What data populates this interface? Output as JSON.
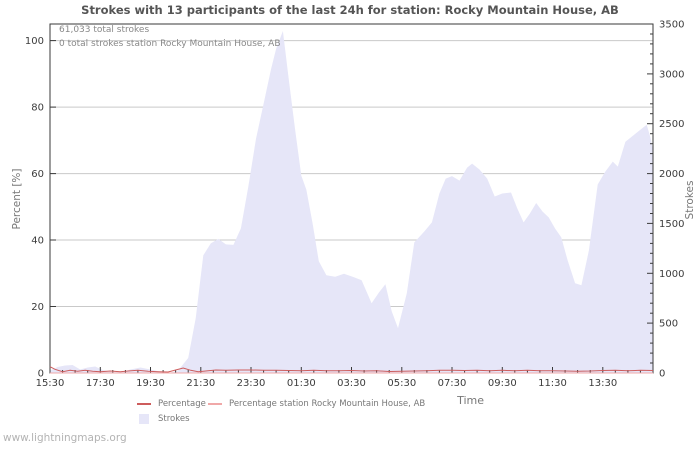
{
  "page": {
    "watermark": "www.lightningmaps.org"
  },
  "chart_data": {
    "type": "area",
    "title": "Strokes with 13 participants of the last 24h for station: Rocky Mountain House, AB",
    "annotations": [
      "61,033 total strokes",
      "0 total strokes station Rocky Mountain House, AB"
    ],
    "total_strokes": "61,033",
    "station_total_strokes": "0",
    "participants": 13,
    "station_name": "Rocky Mountain House, AB",
    "xlabel": "Time",
    "ylabel_left": "Percent [%]",
    "ylabel_right": "Strokes",
    "x_range_hours": [
      0,
      24
    ],
    "x_tick_hours": [
      0,
      2,
      4,
      6,
      8,
      10,
      12,
      14,
      16,
      18,
      20,
      22
    ],
    "x_tick_labels": [
      "15:30",
      "17:30",
      "19:30",
      "21:30",
      "23:30",
      "01:30",
      "03:30",
      "05:30",
      "07:30",
      "09:30",
      "11:30",
      "13:30"
    ],
    "x_minor_step_hours": 0.5,
    "y_left": {
      "min": 0,
      "max": 105,
      "ticks": [
        0,
        20,
        40,
        60,
        80,
        100
      ]
    },
    "y_right": {
      "min": 0,
      "max": 3500,
      "ticks": [
        0,
        500,
        1000,
        1500,
        2000,
        2500,
        3000,
        3500
      ],
      "minor_step": 100
    },
    "grid_percent": [
      20,
      40,
      60,
      80,
      100
    ],
    "grid_on": true,
    "legend_position": "bottom-center",
    "series": [
      {
        "name": "Percentage",
        "type": "line",
        "axis": "left",
        "color": "#cd5c5c",
        "points": [
          [
            0,
            1.9
          ],
          [
            0.2,
            1.1
          ],
          [
            0.5,
            0.4
          ],
          [
            0.8,
            0.8
          ],
          [
            1.1,
            0.5
          ],
          [
            1.4,
            0.8
          ],
          [
            1.7,
            0.5
          ],
          [
            2.0,
            0.4
          ],
          [
            2.4,
            0.6
          ],
          [
            2.8,
            0.4
          ],
          [
            3.1,
            0.6
          ],
          [
            3.5,
            0.8
          ],
          [
            3.9,
            0.5
          ],
          [
            4.3,
            0.4
          ],
          [
            4.7,
            0.3
          ],
          [
            5.0,
            0.9
          ],
          [
            5.3,
            1.5
          ],
          [
            5.6,
            0.8
          ],
          [
            5.9,
            0.4
          ],
          [
            6.2,
            0.6
          ],
          [
            6.6,
            0.9
          ],
          [
            7.0,
            0.85
          ],
          [
            7.5,
            0.9
          ],
          [
            8.0,
            0.9
          ],
          [
            8.5,
            0.85
          ],
          [
            9.0,
            0.8
          ],
          [
            9.5,
            0.75
          ],
          [
            10.0,
            0.7
          ],
          [
            10.5,
            0.8
          ],
          [
            11.0,
            0.65
          ],
          [
            11.5,
            0.7
          ],
          [
            12.0,
            0.75
          ],
          [
            12.5,
            0.6
          ],
          [
            13.0,
            0.65
          ],
          [
            13.5,
            0.45
          ],
          [
            14.0,
            0.55
          ],
          [
            14.5,
            0.6
          ],
          [
            15.0,
            0.7
          ],
          [
            15.5,
            0.8
          ],
          [
            16.0,
            0.85
          ],
          [
            16.5,
            0.75
          ],
          [
            17.0,
            0.8
          ],
          [
            17.5,
            0.7
          ],
          [
            18.0,
            0.8
          ],
          [
            18.5,
            0.65
          ],
          [
            19.0,
            0.8
          ],
          [
            19.5,
            0.7
          ],
          [
            20.0,
            0.65
          ],
          [
            20.5,
            0.6
          ],
          [
            21.0,
            0.55
          ],
          [
            21.5,
            0.6
          ],
          [
            22.0,
            0.75
          ],
          [
            22.5,
            0.8
          ],
          [
            23.0,
            0.7
          ],
          [
            23.5,
            0.8
          ],
          [
            24,
            0.75
          ]
        ]
      },
      {
        "name": "Percentage station Rocky Mountain House, AB",
        "type": "line",
        "axis": "left",
        "color": "#f0a8a8",
        "points": [
          [
            0,
            0
          ],
          [
            24,
            0
          ]
        ]
      },
      {
        "name": "Strokes",
        "type": "area",
        "axis": "right",
        "color": "#e6e6f8",
        "points": [
          [
            0,
            25
          ],
          [
            0.3,
            60
          ],
          [
            0.6,
            75
          ],
          [
            0.9,
            80
          ],
          [
            1.2,
            35
          ],
          [
            1.5,
            55
          ],
          [
            1.8,
            65
          ],
          [
            2.1,
            30
          ],
          [
            2.5,
            8
          ],
          [
            2.9,
            12
          ],
          [
            3.2,
            35
          ],
          [
            3.6,
            55
          ],
          [
            4,
            35
          ],
          [
            4.4,
            12
          ],
          [
            4.8,
            5
          ],
          [
            5.1,
            25
          ],
          [
            5.5,
            150
          ],
          [
            5.8,
            550
          ],
          [
            6.1,
            1180
          ],
          [
            6.4,
            1300
          ],
          [
            6.7,
            1345
          ],
          [
            7,
            1290
          ],
          [
            7.3,
            1285
          ],
          [
            7.6,
            1450
          ],
          [
            7.9,
            1880
          ],
          [
            8.2,
            2350
          ],
          [
            8.5,
            2700
          ],
          [
            8.8,
            3050
          ],
          [
            9,
            3250
          ],
          [
            9.27,
            3430
          ],
          [
            9.5,
            2950
          ],
          [
            9.75,
            2450
          ],
          [
            10,
            1980
          ],
          [
            10.2,
            1840
          ],
          [
            10.45,
            1500
          ],
          [
            10.7,
            1120
          ],
          [
            11,
            980
          ],
          [
            11.35,
            965
          ],
          [
            11.7,
            995
          ],
          [
            12.1,
            960
          ],
          [
            12.4,
            930
          ],
          [
            12.8,
            700
          ],
          [
            13.1,
            810
          ],
          [
            13.35,
            890
          ],
          [
            13.6,
            620
          ],
          [
            13.85,
            450
          ],
          [
            14.2,
            800
          ],
          [
            14.5,
            1310
          ],
          [
            14.9,
            1420
          ],
          [
            15.2,
            1510
          ],
          [
            15.5,
            1800
          ],
          [
            15.75,
            1950
          ],
          [
            16,
            1975
          ],
          [
            16.3,
            1930
          ],
          [
            16.6,
            2060
          ],
          [
            16.8,
            2100
          ],
          [
            17.1,
            2040
          ],
          [
            17.4,
            1950
          ],
          [
            17.7,
            1770
          ],
          [
            18,
            1800
          ],
          [
            18.35,
            1810
          ],
          [
            18.6,
            1650
          ],
          [
            18.85,
            1510
          ],
          [
            19.1,
            1600
          ],
          [
            19.35,
            1705
          ],
          [
            19.6,
            1620
          ],
          [
            19.85,
            1560
          ],
          [
            20.1,
            1450
          ],
          [
            20.35,
            1360
          ],
          [
            20.6,
            1130
          ],
          [
            20.9,
            900
          ],
          [
            21.15,
            880
          ],
          [
            21.45,
            1230
          ],
          [
            21.8,
            1890
          ],
          [
            22.1,
            2020
          ],
          [
            22.4,
            2120
          ],
          [
            22.6,
            2070
          ],
          [
            22.9,
            2320
          ],
          [
            23.2,
            2380
          ],
          [
            23.5,
            2440
          ],
          [
            23.75,
            2490
          ],
          [
            23.9,
            2360
          ],
          [
            24,
            2240
          ]
        ]
      }
    ]
  }
}
